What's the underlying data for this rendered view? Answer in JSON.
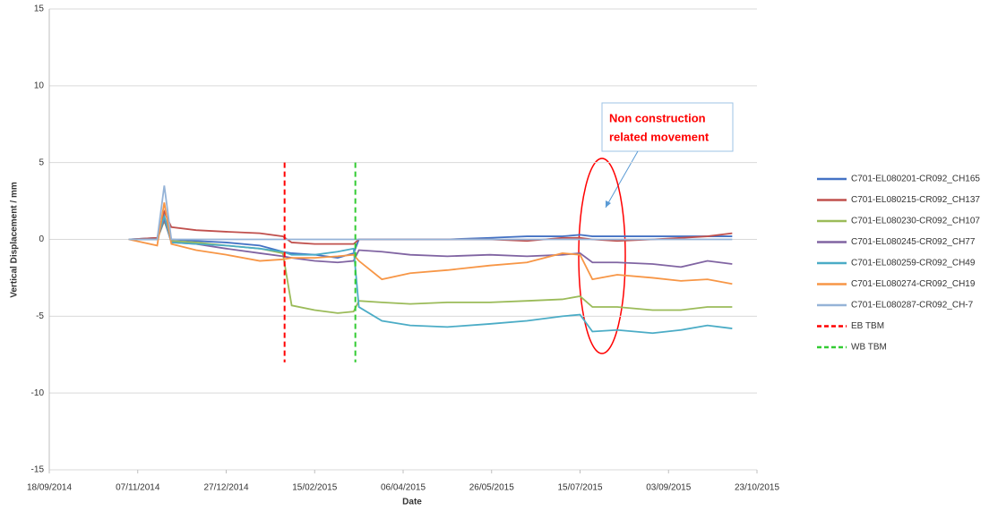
{
  "chart_data": {
    "type": "line",
    "xlabel": "Date",
    "ylabel": "Vertical Displacement / mm",
    "xlim": [
      "18/09/2014",
      "23/10/2015"
    ],
    "xticks": [
      "18/09/2014",
      "07/11/2014",
      "27/12/2014",
      "15/02/2015",
      "06/04/2015",
      "26/05/2015",
      "15/07/2015",
      "03/09/2015",
      "23/10/2015"
    ],
    "ylim": [
      -15,
      15
    ],
    "yticks": [
      -15,
      -10,
      -5,
      0,
      5,
      10,
      15
    ],
    "grid": true,
    "legend": "right",
    "x": [
      "02/11/2014",
      "18/11/2014",
      "22/11/2014",
      "26/11/2014",
      "10/12/2014",
      "27/12/2014",
      "15/01/2015",
      "28/01/2015",
      "02/02/2015",
      "15/02/2015",
      "28/02/2015",
      "09/03/2015",
      "12/03/2015",
      "25/03/2015",
      "10/04/2015",
      "01/05/2015",
      "25/05/2015",
      "15/06/2015",
      "05/07/2015",
      "15/07/2015",
      "22/07/2015",
      "05/08/2015",
      "25/08/2015",
      "10/09/2015",
      "25/09/2015",
      "09/10/2015"
    ],
    "series": [
      {
        "name": "C701-EL080201-CR092_CH165",
        "color": "#4472c4",
        "values": [
          0,
          0.1,
          1.5,
          0,
          -0.1,
          -0.2,
          -0.4,
          -0.8,
          -0.9,
          -1.0,
          -1.2,
          -0.9,
          0,
          0,
          0,
          0,
          0.1,
          0.2,
          0.2,
          0.3,
          0.2,
          0.2,
          0.2,
          0.2,
          0.2,
          0.2
        ]
      },
      {
        "name": "C701-EL080215-CR092_CH137",
        "color": "#c0504d",
        "values": [
          0,
          0.1,
          1.8,
          0.8,
          0.6,
          0.5,
          0.4,
          0.2,
          -0.2,
          -0.3,
          -0.3,
          -0.3,
          0,
          0,
          0,
          0,
          0,
          -0.1,
          0.1,
          0.1,
          0,
          -0.1,
          0,
          0.1,
          0.2,
          0.4
        ]
      },
      {
        "name": "C701-EL080230-CR092_CH107",
        "color": "#9bbb59",
        "values": [
          0,
          0,
          1.2,
          -0.1,
          -0.2,
          -0.4,
          -0.6,
          -0.9,
          -4.3,
          -4.6,
          -4.8,
          -4.7,
          -4.0,
          -4.1,
          -4.2,
          -4.1,
          -4.1,
          -4.0,
          -3.9,
          -3.7,
          -4.4,
          -4.4,
          -4.6,
          -4.6,
          -4.4,
          -4.4
        ]
      },
      {
        "name": "C701-EL080245-CR092_CH77",
        "color": "#8064a2",
        "values": [
          0,
          0,
          1.3,
          -0.2,
          -0.3,
          -0.6,
          -0.9,
          -1.1,
          -1.2,
          -1.4,
          -1.5,
          -1.4,
          -0.7,
          -0.8,
          -1.0,
          -1.1,
          -1.0,
          -1.1,
          -1.0,
          -0.9,
          -1.5,
          -1.5,
          -1.6,
          -1.8,
          -1.4,
          -1.6
        ]
      },
      {
        "name": "C701-EL080259-CR092_CH49",
        "color": "#4bacc6",
        "values": [
          0,
          0,
          1.5,
          -0.2,
          -0.3,
          -0.4,
          -0.6,
          -0.8,
          -1.0,
          -1.0,
          -0.8,
          -0.6,
          -4.4,
          -5.3,
          -5.6,
          -5.7,
          -5.5,
          -5.3,
          -5.0,
          -4.9,
          -6.0,
          -5.9,
          -6.1,
          -5.9,
          -5.6,
          -5.8
        ]
      },
      {
        "name": "C701-EL080274-CR092_CH19",
        "color": "#f79646",
        "values": [
          0,
          -0.4,
          2.4,
          -0.3,
          -0.7,
          -1.0,
          -1.4,
          -1.3,
          -1.2,
          -1.2,
          -1.1,
          -1.0,
          -1.4,
          -2.6,
          -2.2,
          -2.0,
          -1.7,
          -1.5,
          -0.9,
          -1.0,
          -2.6,
          -2.3,
          -2.5,
          -2.7,
          -2.6,
          -2.9
        ]
      },
      {
        "name": "C701-EL080287-CR092_CH-7",
        "color": "#95b3d7",
        "values": [
          0,
          0,
          3.5,
          0,
          0,
          0,
          0,
          0,
          0,
          0,
          0,
          0,
          0,
          0,
          0,
          0,
          0,
          0,
          0,
          0,
          0,
          0,
          0,
          0,
          0,
          0
        ]
      },
      {
        "name": "EB TBM",
        "color": "#ff0000",
        "dash": true,
        "x": [
          "29/01/2015",
          "29/01/2015"
        ],
        "values": [
          5,
          -8
        ]
      },
      {
        "name": "WB TBM",
        "color": "#33cc33",
        "dash": true,
        "x": [
          "10/03/2015",
          "10/03/2015"
        ],
        "values": [
          5,
          -8
        ]
      }
    ],
    "annotation": {
      "text": [
        "Non construction",
        "related movement"
      ],
      "color": "#ff0000"
    }
  }
}
